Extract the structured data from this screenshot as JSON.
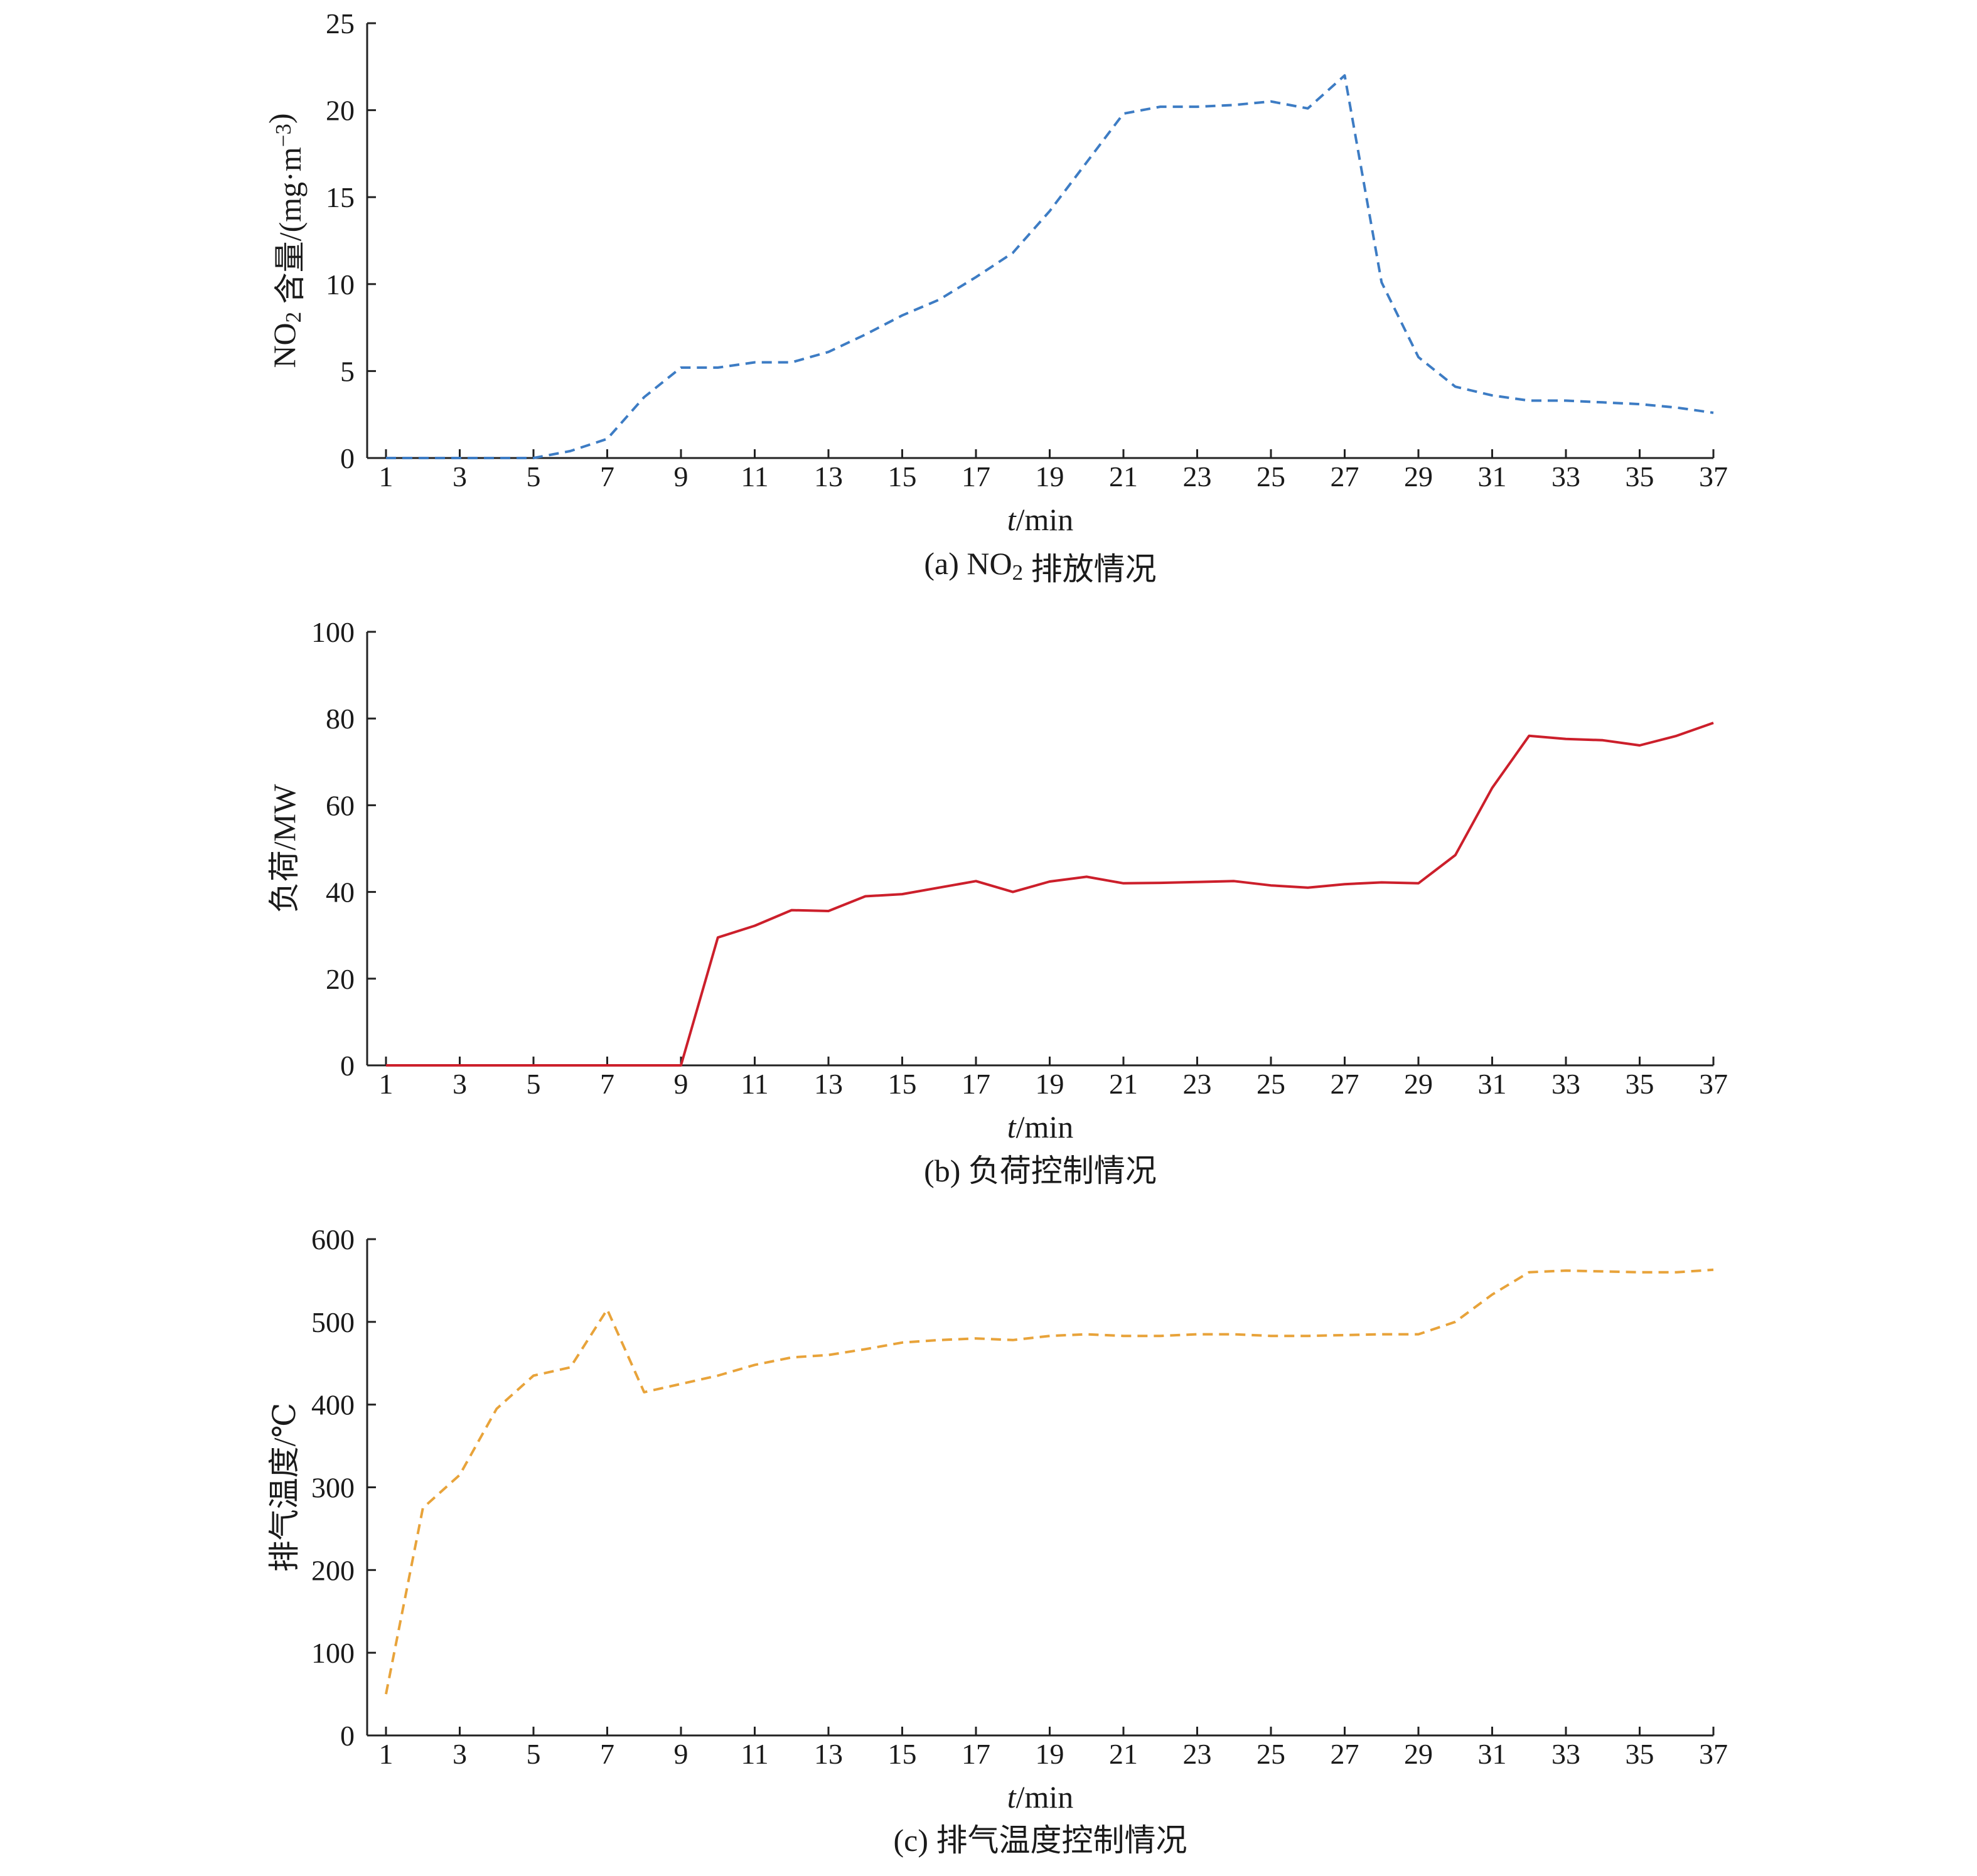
{
  "chart_data": [
    {
      "type": "line",
      "panel": "a",
      "title": "(a) NO₂ 排放情况",
      "xlabel": "t/min",
      "ylabel": "NO₂ 含量/(mg·m⁻³)",
      "xlim": [
        1,
        37
      ],
      "ylim": [
        0,
        25
      ],
      "xticks": [
        "1",
        "3",
        "5",
        "7",
        "9",
        "11",
        "13",
        "15",
        "17",
        "19",
        "21",
        "23",
        "25",
        "27",
        "29",
        "31",
        "33",
        "35",
        "37"
      ],
      "yticks": [
        "0",
        "5",
        "10",
        "15",
        "20",
        "25"
      ],
      "line_style": "dashed",
      "color": "#3d7cc4",
      "x": [
        1,
        2,
        3,
        4,
        5,
        6,
        7,
        8,
        9,
        10,
        11,
        12,
        13,
        14,
        15,
        16,
        17,
        18,
        19,
        20,
        21,
        22,
        23,
        24,
        25,
        26,
        27,
        28,
        29,
        30,
        31,
        32,
        33,
        34,
        35,
        36,
        37
      ],
      "values": [
        0,
        0,
        0,
        0,
        0,
        0.4,
        1.1,
        3.5,
        5.2,
        5.2,
        5.5,
        5.5,
        6.1,
        7.1,
        8.2,
        9.1,
        10.4,
        11.8,
        14.2,
        17.0,
        19.8,
        20.2,
        20.2,
        20.3,
        20.5,
        20.1,
        22.0,
        10.1,
        5.8,
        4.1,
        3.6,
        3.3,
        3.3,
        3.2,
        3.1,
        2.9,
        2.6
      ]
    },
    {
      "type": "line",
      "panel": "b",
      "title": "(b) 负荷控制情况",
      "xlabel": "t/min",
      "ylabel": "负荷/MW",
      "xlim": [
        1,
        37
      ],
      "ylim": [
        0,
        100
      ],
      "xticks": [
        "1",
        "3",
        "5",
        "7",
        "9",
        "11",
        "13",
        "15",
        "17",
        "19",
        "21",
        "23",
        "25",
        "27",
        "29",
        "31",
        "33",
        "35",
        "37"
      ],
      "yticks": [
        "0",
        "20",
        "40",
        "60",
        "80",
        "100"
      ],
      "line_style": "solid",
      "color": "#cc1f2b",
      "x": [
        1,
        2,
        3,
        4,
        5,
        6,
        7,
        8,
        9,
        10,
        11,
        12,
        13,
        14,
        15,
        16,
        17,
        18,
        19,
        20,
        21,
        22,
        23,
        24,
        25,
        26,
        27,
        28,
        29,
        30,
        31,
        32,
        33,
        34,
        35,
        36,
        37
      ],
      "values": [
        0,
        0,
        0,
        0,
        0,
        0,
        0,
        0,
        0,
        29.5,
        32.2,
        35.8,
        35.6,
        39.0,
        39.5,
        41.0,
        42.5,
        40.0,
        42.4,
        43.5,
        42.0,
        42.1,
        42.3,
        42.5,
        41.5,
        41.0,
        41.8,
        42.2,
        42.0,
        48.5,
        64.0,
        76.0,
        75.3,
        75.0,
        73.8,
        76.0,
        79.0
      ]
    },
    {
      "type": "line",
      "panel": "c",
      "title": "(c) 排气温度控制情况",
      "xlabel": "t/min",
      "ylabel": "排气温度/℃",
      "xlim": [
        1,
        37
      ],
      "ylim": [
        0,
        600
      ],
      "xticks": [
        "1",
        "3",
        "5",
        "7",
        "9",
        "11",
        "13",
        "15",
        "17",
        "19",
        "21",
        "23",
        "25",
        "27",
        "29",
        "31",
        "33",
        "35",
        "37"
      ],
      "yticks": [
        "0",
        "100",
        "200",
        "300",
        "400",
        "500",
        "600"
      ],
      "line_style": "dashed",
      "color": "#e8a33a",
      "x": [
        1,
        2,
        3,
        4,
        5,
        6,
        7,
        8,
        9,
        10,
        11,
        12,
        13,
        14,
        15,
        16,
        17,
        18,
        19,
        20,
        21,
        22,
        23,
        24,
        25,
        26,
        27,
        28,
        29,
        30,
        31,
        32,
        33,
        34,
        35,
        36,
        37
      ],
      "values": [
        50,
        275,
        315,
        395,
        435,
        445,
        515,
        415,
        425,
        435,
        448,
        457,
        460,
        467,
        475,
        478,
        480,
        478,
        483,
        485,
        483,
        483,
        485,
        485,
        483,
        483,
        484,
        485,
        485,
        500,
        533,
        560,
        562,
        561,
        560,
        560,
        563
      ]
    }
  ]
}
